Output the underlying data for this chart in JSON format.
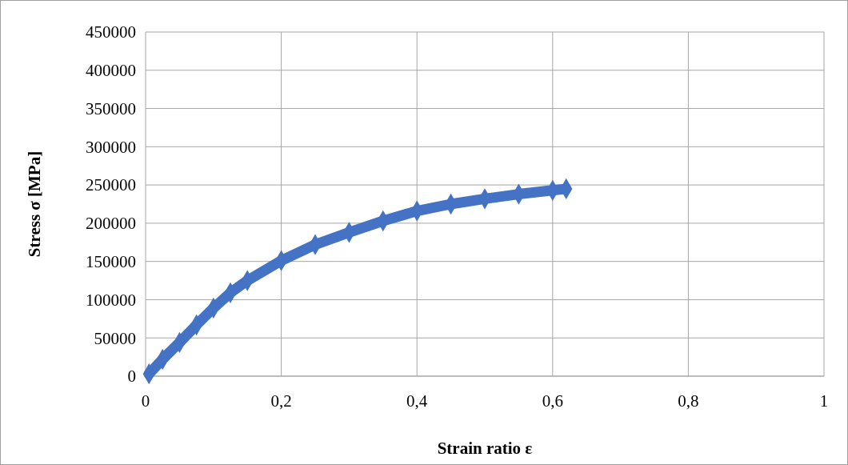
{
  "chart_data": {
    "type": "line",
    "xlabel": "Strain ratio ε",
    "ylabel": "Stress σ [MPa]",
    "x": [
      0.005,
      0.025,
      0.05,
      0.075,
      0.1,
      0.125,
      0.15,
      0.2,
      0.25,
      0.3,
      0.35,
      0.4,
      0.45,
      0.5,
      0.55,
      0.6,
      0.62
    ],
    "series": [
      {
        "color": "#4472c4",
        "values": [
          3000,
          22000,
          44000,
          67000,
          89000,
          109000,
          125000,
          151000,
          172000,
          188000,
          203000,
          216000,
          225000,
          232000,
          238000,
          243000,
          245000
        ]
      }
    ],
    "xlim": [
      0,
      1
    ],
    "xticks": [
      0,
      {
        "value": 0.2,
        "label": "0,2"
      },
      {
        "value": 0.4,
        "label": "0,4"
      },
      {
        "value": 0.6,
        "label": "0,6"
      },
      {
        "value": 0.8,
        "label": "0,8"
      },
      1
    ],
    "ylim": [
      0,
      450000
    ],
    "yticks": [
      0,
      50000,
      100000,
      150000,
      200000,
      250000,
      300000,
      350000,
      400000,
      450000
    ],
    "grid": true,
    "marker": "diamond",
    "line_style": "solid"
  }
}
